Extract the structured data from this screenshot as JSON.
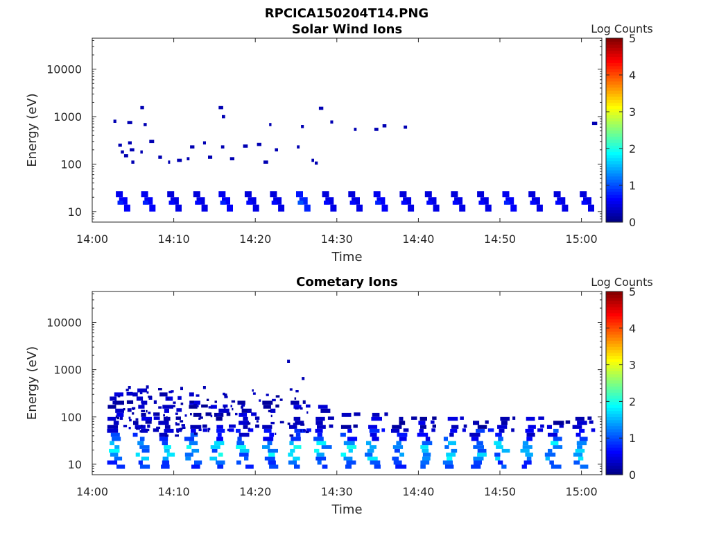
{
  "figure": {
    "title": "RPCICA150204T14.PNG"
  },
  "chart_data": [
    {
      "type": "heatmap",
      "title": "Solar Wind Ions",
      "xlabel": "Time",
      "ylabel": "Energy (eV)",
      "x_ticks": [
        "14:00",
        "14:10",
        "14:20",
        "14:30",
        "14:40",
        "14:50",
        "15:00"
      ],
      "y_ticks": [
        "10",
        "100",
        "1000",
        "10000"
      ],
      "y_scale": "log",
      "ylim": [
        6,
        45000
      ],
      "xlim_minutes": [
        0,
        62.5
      ],
      "colorbar": {
        "label": "Log Counts",
        "ticks": [
          "0",
          "1",
          "2",
          "3",
          "4",
          "5"
        ],
        "range": [
          0,
          5
        ],
        "colormap": "jet"
      },
      "clusters": [
        {
          "t": 3.5,
          "e": 20,
          "lc": 0.6
        },
        {
          "t": 6.6,
          "e": 20,
          "lc": 0.6
        },
        {
          "t": 9.8,
          "e": 20,
          "lc": 0.5
        },
        {
          "t": 13.0,
          "e": 20,
          "lc": 0.5
        },
        {
          "t": 16.1,
          "e": 20,
          "lc": 0.6
        },
        {
          "t": 19.3,
          "e": 20,
          "lc": 0.5
        },
        {
          "t": 22.4,
          "e": 20,
          "lc": 0.5
        },
        {
          "t": 25.6,
          "e": 20,
          "lc": 0.8
        },
        {
          "t": 28.8,
          "e": 20,
          "lc": 0.5
        },
        {
          "t": 32.0,
          "e": 20,
          "lc": 0.5
        },
        {
          "t": 35.1,
          "e": 20,
          "lc": 0.6
        },
        {
          "t": 38.3,
          "e": 20,
          "lc": 0.5
        },
        {
          "t": 41.4,
          "e": 20,
          "lc": 0.5
        },
        {
          "t": 44.6,
          "e": 20,
          "lc": 0.5
        },
        {
          "t": 47.8,
          "e": 20,
          "lc": 0.5
        },
        {
          "t": 50.9,
          "e": 20,
          "lc": 0.6
        },
        {
          "t": 54.1,
          "e": 20,
          "lc": 0.5
        },
        {
          "t": 57.2,
          "e": 20,
          "lc": 0.5
        },
        {
          "t": 60.4,
          "e": 20,
          "lc": 0.5
        }
      ],
      "scatter": [
        {
          "t": 2.6,
          "e": 800
        },
        {
          "t": 4.3,
          "e": 750
        },
        {
          "t": 5.9,
          "e": 1550
        },
        {
          "t": 6.3,
          "e": 680
        },
        {
          "t": 15.5,
          "e": 1550
        },
        {
          "t": 15.9,
          "e": 1000
        },
        {
          "t": 27.8,
          "e": 1500
        },
        {
          "t": 29.2,
          "e": 770
        },
        {
          "t": 32.1,
          "e": 540
        },
        {
          "t": 34.6,
          "e": 540
        },
        {
          "t": 35.6,
          "e": 640
        },
        {
          "t": 38.2,
          "e": 600
        },
        {
          "t": 25.6,
          "e": 620
        },
        {
          "t": 21.7,
          "e": 680
        },
        {
          "t": 61.3,
          "e": 720
        },
        {
          "t": 3.2,
          "e": 250
        },
        {
          "t": 3.5,
          "e": 180
        },
        {
          "t": 3.9,
          "e": 150
        },
        {
          "t": 4.4,
          "e": 280
        },
        {
          "t": 4.6,
          "e": 200
        },
        {
          "t": 4.8,
          "e": 110
        },
        {
          "t": 5.9,
          "e": 180
        },
        {
          "t": 7.0,
          "e": 300
        },
        {
          "t": 8.1,
          "e": 140
        },
        {
          "t": 9.3,
          "e": 110
        },
        {
          "t": 10.4,
          "e": 120
        },
        {
          "t": 11.6,
          "e": 130
        },
        {
          "t": 12.0,
          "e": 230
        },
        {
          "t": 13.6,
          "e": 280
        },
        {
          "t": 14.2,
          "e": 140
        },
        {
          "t": 15.8,
          "e": 230
        },
        {
          "t": 16.9,
          "e": 130
        },
        {
          "t": 18.5,
          "e": 240
        },
        {
          "t": 20.2,
          "e": 260
        },
        {
          "t": 21.0,
          "e": 110
        },
        {
          "t": 22.4,
          "e": 200
        },
        {
          "t": 25.1,
          "e": 230
        },
        {
          "t": 26.9,
          "e": 120
        },
        {
          "t": 27.3,
          "e": 105
        }
      ]
    },
    {
      "type": "heatmap",
      "title": "Cometary Ions",
      "xlabel": "Time",
      "ylabel": "Energy (eV)",
      "x_ticks": [
        "14:00",
        "14:10",
        "14:20",
        "14:30",
        "14:40",
        "14:50",
        "15:00"
      ],
      "y_ticks": [
        "10",
        "100",
        "1000",
        "10000"
      ],
      "y_scale": "log",
      "ylim": [
        6,
        45000
      ],
      "xlim_minutes": [
        0,
        62.5
      ],
      "colorbar": {
        "label": "Log Counts",
        "ticks": [
          "0",
          "1",
          "2",
          "3",
          "4",
          "5"
        ],
        "range": [
          0,
          5
        ],
        "colormap": "jet"
      },
      "sweeps_minutes": [
        3.5,
        6.6,
        9.8,
        13.0,
        16.1,
        19.3,
        22.4,
        25.6,
        28.8,
        32.0,
        35.1,
        38.3,
        41.4,
        44.6,
        47.8,
        50.9,
        54.1,
        57.2,
        60.4
      ],
      "band_top_eV": [
        300,
        350,
        320,
        380,
        300,
        260,
        250,
        220,
        170,
        130,
        110,
        100,
        90,
        100,
        100,
        100,
        95,
        100,
        90
      ],
      "scatter": [
        {
          "t": 23.9,
          "e": 1500
        },
        {
          "t": 25.7,
          "e": 650
        },
        {
          "t": 4.4,
          "e": 420
        },
        {
          "t": 6.6,
          "e": 430
        },
        {
          "t": 10.8,
          "e": 400
        },
        {
          "t": 13.6,
          "e": 420
        },
        {
          "t": 2.5,
          "e": 200
        }
      ]
    }
  ]
}
